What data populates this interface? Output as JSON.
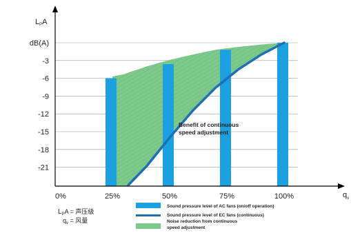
{
  "chart_data": {
    "type": "bar",
    "y_unit_label": "dB(A)",
    "y_axis_title": {
      "main": "L",
      "sub": "P",
      "tail": "A"
    },
    "x_axis_title": {
      "main": "q",
      "sub": "v"
    },
    "ylim": [
      -24,
      3
    ],
    "y_ticks": [
      {
        "value": 0,
        "label": "dB(A)"
      },
      {
        "value": -3,
        "label": "-3"
      },
      {
        "value": -6,
        "label": "-6"
      },
      {
        "value": -9,
        "label": "-9"
      },
      {
        "value": -12,
        "label": "-12"
      },
      {
        "value": -15,
        "label": "-15"
      },
      {
        "value": -18,
        "label": "-18"
      },
      {
        "value": -21,
        "label": "-21"
      }
    ],
    "x_ticks": [
      {
        "value": 0,
        "label": "0%"
      },
      {
        "value": 25,
        "label": "25%"
      },
      {
        "value": 50,
        "label": "50%"
      },
      {
        "value": 75,
        "label": "75%"
      },
      {
        "value": 100,
        "label": "100%"
      }
    ],
    "grid": true,
    "bars": {
      "name": "Sound pressure level of AC fans (on/off operation)",
      "color": "#1ba1e2",
      "x": [
        25,
        50,
        75,
        100
      ],
      "top": [
        -6,
        -3.6,
        -1.2,
        0
      ]
    },
    "ec_line": {
      "name": "Sound pressure level of EC fans (continuous)",
      "color": "#1f6fb5",
      "points": [
        [
          32,
          -24
        ],
        [
          40,
          -20.8
        ],
        [
          50,
          -16
        ],
        [
          60,
          -11.5
        ],
        [
          70,
          -7.6
        ],
        [
          80,
          -4.5
        ],
        [
          90,
          -2.0
        ],
        [
          100,
          0
        ]
      ]
    },
    "envelope": {
      "name": "Noise reduction from continuous speed adjustment",
      "color": "#7dc98b",
      "points": [
        [
          25,
          -5.7
        ],
        [
          30,
          -5.3
        ],
        [
          40,
          -4.0
        ],
        [
          50,
          -2.9
        ],
        [
          60,
          -2.0
        ],
        [
          70,
          -1.2
        ],
        [
          80,
          -0.7
        ],
        [
          90,
          -0.3
        ],
        [
          100,
          0
        ]
      ]
    },
    "annotation": {
      "line1": "Benefit of continuous",
      "line2": "speed adjustment",
      "x": 50,
      "y": -13
    },
    "legend": [
      {
        "type": "bar",
        "color": "#1ba1e2",
        "text": "Sound pressure level of AC fans (on/off operation)"
      },
      {
        "type": "line",
        "color": "#1f6fb5",
        "text": "Sound pressure level of EC fans (continuous)"
      },
      {
        "type": "area",
        "color": "#7dc98b",
        "text": "Noise reduction from continuous",
        "text2": "speed adjustment"
      }
    ],
    "notes": [
      {
        "main": "L",
        "sub": "P",
        "tail": "A = 声压级"
      },
      {
        "main": "q",
        "sub": "v",
        "tail": " = 风量"
      }
    ]
  }
}
